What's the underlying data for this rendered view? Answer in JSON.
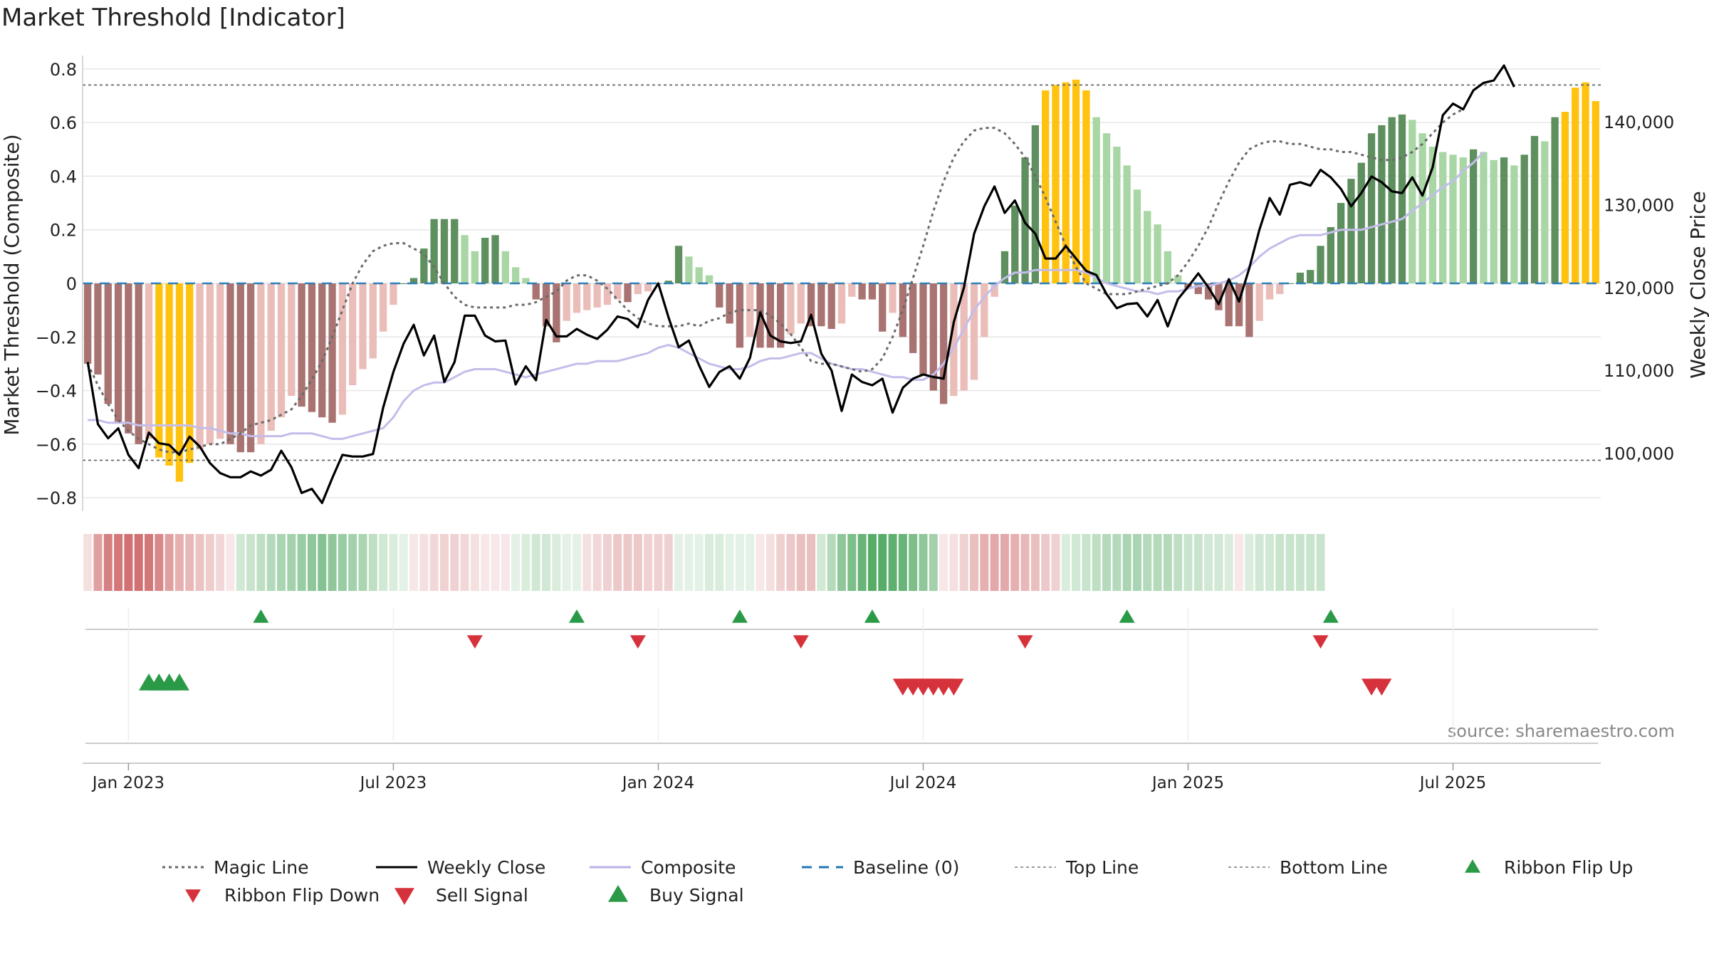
{
  "chart_data": {
    "type": "bar",
    "title": "Market Threshold [Indicator]",
    "ylabel": "Market Threshold (Composite)",
    "y2label": "Weekly Close Price",
    "source": "source: sharemaestro.com",
    "ylim": [
      -0.85,
      0.85
    ],
    "y2lim": [
      93000,
      148000
    ],
    "yticks": [
      {
        "v": 0.8,
        "label": "0.8"
      },
      {
        "v": 0.6,
        "label": "0.6"
      },
      {
        "v": 0.4,
        "label": "0.4"
      },
      {
        "v": 0.2,
        "label": "0.2"
      },
      {
        "v": 0,
        "label": "0"
      },
      {
        "v": -0.2,
        "label": "−0.2"
      },
      {
        "v": -0.4,
        "label": "−0.4"
      },
      {
        "v": -0.6,
        "label": "−0.6"
      },
      {
        "v": -0.8,
        "label": "−0.8"
      }
    ],
    "y2ticks": [
      {
        "v": 100000,
        "label": "100,000"
      },
      {
        "v": 110000,
        "label": "110,000"
      },
      {
        "v": 120000,
        "label": "120,000"
      },
      {
        "v": 130000,
        "label": "130,000"
      },
      {
        "v": 140000,
        "label": "140,000"
      }
    ],
    "xticks": [
      {
        "week": 4,
        "label": "Jan 2023"
      },
      {
        "week": 30,
        "label": "Jul 2023"
      },
      {
        "week": 56,
        "label": "Jan 2024"
      },
      {
        "week": 82,
        "label": "Jul 2024"
      },
      {
        "week": 108,
        "label": "Jan 2025"
      },
      {
        "week": 134,
        "label": "Jul 2025"
      }
    ],
    "top_line": 0.74,
    "bottom_line": -0.66,
    "composite_bars": [
      -0.3,
      -0.34,
      -0.45,
      -0.52,
      -0.56,
      -0.6,
      -0.58,
      -0.65,
      -0.68,
      -0.74,
      -0.67,
      -0.62,
      -0.6,
      -0.58,
      -0.6,
      -0.63,
      -0.63,
      -0.6,
      -0.55,
      -0.5,
      -0.42,
      -0.46,
      -0.48,
      -0.5,
      -0.52,
      -0.49,
      -0.38,
      -0.32,
      -0.28,
      -0.18,
      -0.08,
      0,
      0.02,
      0.13,
      0.24,
      0.24,
      0.24,
      0.18,
      0.12,
      0.17,
      0.18,
      0.12,
      0.06,
      0.02,
      -0.06,
      -0.16,
      -0.22,
      -0.14,
      -0.11,
      -0.1,
      -0.09,
      -0.08,
      -0.06,
      -0.07,
      -0.04,
      -0.03,
      0,
      0.01,
      0.14,
      0.1,
      0.06,
      0.03,
      -0.09,
      -0.15,
      -0.24,
      -0.2,
      -0.24,
      -0.24,
      -0.24,
      -0.19,
      -0.15,
      -0.16,
      -0.16,
      -0.17,
      -0.15,
      -0.05,
      -0.06,
      -0.06,
      -0.18,
      -0.11,
      -0.2,
      -0.26,
      -0.34,
      -0.4,
      -0.45,
      -0.42,
      -0.4,
      -0.36,
      -0.2,
      -0.05,
      0.12,
      0.29,
      0.47,
      0.59,
      0.72,
      0.74,
      0.75,
      0.76,
      0.72,
      0.62,
      0.56,
      0.51,
      0.44,
      0.35,
      0.27,
      0.22,
      0.12,
      0.03,
      -0.02,
      -0.04,
      -0.06,
      -0.1,
      -0.16,
      -0.16,
      -0.2,
      -0.14,
      -0.06,
      -0.04,
      0,
      0.04,
      0.05,
      0.14,
      0.21,
      0.3,
      0.39,
      0.45,
      0.56,
      0.59,
      0.62,
      0.63,
      0.61,
      0.56,
      0.51,
      0.49,
      0.48,
      0.47,
      0.5,
      0.49,
      0.46,
      0.47,
      0.44,
      0.48,
      0.55,
      0.53,
      0.62,
      0.64,
      0.73,
      0.75,
      0.68
    ],
    "weekly_close": [
      111000,
      103500,
      101800,
      103000,
      99800,
      98200,
      102500,
      101200,
      101000,
      99800,
      102000,
      100800,
      98800,
      97600,
      97100,
      97100,
      97800,
      97300,
      98000,
      100300,
      98300,
      95200,
      95700,
      94000,
      97000,
      99800,
      99600,
      99600,
      99900,
      105500,
      109800,
      113200,
      115500,
      111800,
      114200,
      108600,
      111000,
      116600,
      116600,
      114200,
      113500,
      113600,
      108300,
      110500,
      108800,
      116100,
      114100,
      114100,
      115000,
      114300,
      113800,
      114900,
      116500,
      116200,
      115200,
      118500,
      120500,
      116400,
      112800,
      113600,
      110600,
      108000,
      109800,
      110500,
      109000,
      111500,
      117000,
      114200,
      113500,
      113300,
      113500,
      116700,
      112000,
      110000,
      105100,
      109500,
      108600,
      108200,
      109000,
      104900,
      107900,
      109000,
      109500,
      109200,
      109000,
      115800,
      120000,
      126500,
      129800,
      132200,
      129000,
      130500,
      127800,
      126500,
      123500,
      123500,
      125000,
      123500,
      122000,
      121500,
      119200,
      117500,
      118000,
      118100,
      116500,
      118500,
      115300,
      118600,
      120100,
      121700,
      120000,
      118000,
      121000,
      118300,
      122300,
      127000,
      130800,
      128800,
      132400,
      132700,
      132300,
      134200,
      133300,
      131900,
      129800,
      131400,
      133400,
      132700,
      131600,
      131400,
      133300,
      131100,
      134500,
      140800,
      142200,
      141500,
      143800,
      144700,
      145000,
      146800,
      144200
    ],
    "composite_line": [
      -0.51,
      -0.51,
      -0.52,
      -0.52,
      -0.52,
      -0.53,
      -0.53,
      -0.53,
      -0.53,
      -0.53,
      -0.53,
      -0.54,
      -0.54,
      -0.55,
      -0.56,
      -0.56,
      -0.57,
      -0.57,
      -0.57,
      -0.57,
      -0.56,
      -0.56,
      -0.56,
      -0.57,
      -0.58,
      -0.58,
      -0.57,
      -0.56,
      -0.55,
      -0.54,
      -0.5,
      -0.44,
      -0.4,
      -0.38,
      -0.37,
      -0.37,
      -0.35,
      -0.33,
      -0.32,
      -0.32,
      -0.32,
      -0.33,
      -0.34,
      -0.35,
      -0.34,
      -0.33,
      -0.32,
      -0.31,
      -0.3,
      -0.3,
      -0.29,
      -0.29,
      -0.29,
      -0.28,
      -0.27,
      -0.26,
      -0.24,
      -0.23,
      -0.24,
      -0.26,
      -0.28,
      -0.3,
      -0.31,
      -0.32,
      -0.32,
      -0.31,
      -0.29,
      -0.28,
      -0.28,
      -0.27,
      -0.26,
      -0.26,
      -0.28,
      -0.3,
      -0.31,
      -0.32,
      -0.32,
      -0.33,
      -0.34,
      -0.35,
      -0.35,
      -0.36,
      -0.36,
      -0.34,
      -0.3,
      -0.24,
      -0.17,
      -0.1,
      -0.05,
      -0.01,
      0.02,
      0.04,
      0.04,
      0.05,
      0.05,
      0.05,
      0.05,
      0.05,
      0.04,
      0.02,
      0,
      -0.01,
      -0.02,
      -0.03,
      -0.03,
      -0.04,
      -0.03,
      -0.03,
      -0.02,
      -0.01,
      -0.01,
      0,
      0.01,
      0.03,
      0.06,
      0.1,
      0.13,
      0.15,
      0.17,
      0.18,
      0.18,
      0.18,
      0.19,
      0.2,
      0.2,
      0.2,
      0.21,
      0.22,
      0.23,
      0.24,
      0.27,
      0.3,
      0.33,
      0.36,
      0.38,
      0.42,
      0.45,
      0.49
    ],
    "magic_line": [
      -0.3,
      -0.38,
      -0.45,
      -0.51,
      -0.55,
      -0.58,
      -0.6,
      -0.62,
      -0.63,
      -0.63,
      -0.62,
      -0.61,
      -0.6,
      -0.6,
      -0.58,
      -0.56,
      -0.53,
      -0.52,
      -0.51,
      -0.49,
      -0.47,
      -0.42,
      -0.36,
      -0.29,
      -0.2,
      -0.1,
      0,
      0.07,
      0.12,
      0.14,
      0.15,
      0.15,
      0.13,
      0.11,
      0.06,
      0,
      -0.05,
      -0.08,
      -0.09,
      -0.09,
      -0.09,
      -0.09,
      -0.08,
      -0.08,
      -0.07,
      -0.05,
      -0.03,
      0.01,
      0.03,
      0.03,
      0.01,
      -0.02,
      -0.06,
      -0.1,
      -0.13,
      -0.15,
      -0.16,
      -0.16,
      -0.16,
      -0.15,
      -0.16,
      -0.14,
      -0.13,
      -0.11,
      -0.1,
      -0.1,
      -0.1,
      -0.12,
      -0.15,
      -0.19,
      -0.24,
      -0.29,
      -0.3,
      -0.3,
      -0.31,
      -0.32,
      -0.33,
      -0.32,
      -0.28,
      -0.2,
      -0.1,
      0.02,
      0.14,
      0.27,
      0.38,
      0.47,
      0.53,
      0.57,
      0.58,
      0.58,
      0.56,
      0.52,
      0.47,
      0.4,
      0.32,
      0.23,
      0.14,
      0.06,
      0,
      -0.02,
      -0.04,
      -0.04,
      -0.04,
      -0.03,
      -0.02,
      -0.01,
      0,
      0.03,
      0.08,
      0.14,
      0.21,
      0.3,
      0.38,
      0.45,
      0.5,
      0.52,
      0.53,
      0.53,
      0.52,
      0.52,
      0.51,
      0.5,
      0.5,
      0.49,
      0.49,
      0.48,
      0.47,
      0.46,
      0.46,
      0.47,
      0.49,
      0.52,
      0.56,
      0.6,
      0.63,
      0.65
    ],
    "ribbon": [
      -0.2,
      -0.6,
      -0.8,
      -0.85,
      -0.9,
      -0.9,
      -0.85,
      -0.75,
      -0.6,
      -0.5,
      -0.45,
      -0.38,
      -0.32,
      -0.25,
      -0.15,
      0.25,
      0.3,
      0.35,
      0.4,
      0.45,
      0.5,
      0.55,
      0.6,
      0.65,
      0.6,
      0.55,
      0.5,
      0.45,
      0.35,
      0.25,
      0.2,
      0.15,
      -0.15,
      -0.2,
      -0.25,
      -0.28,
      -0.3,
      -0.25,
      -0.2,
      -0.15,
      -0.1,
      -0.1,
      0.15,
      0.2,
      0.25,
      0.25,
      0.2,
      0.15,
      0.1,
      -0.2,
      -0.25,
      -0.3,
      -0.35,
      -0.35,
      -0.35,
      -0.3,
      -0.3,
      -0.3,
      0.1,
      0.15,
      0.15,
      0.2,
      0.2,
      0.15,
      0.1,
      0.1,
      -0.1,
      -0.2,
      -0.3,
      -0.35,
      -0.4,
      -0.4,
      0.25,
      0.4,
      0.6,
      0.7,
      0.8,
      0.9,
      0.9,
      0.85,
      0.8,
      0.7,
      0.6,
      0.5,
      -0.1,
      -0.2,
      -0.3,
      -0.4,
      -0.5,
      -0.55,
      -0.55,
      -0.5,
      -0.45,
      -0.4,
      -0.35,
      -0.3,
      0.2,
      0.25,
      0.3,
      0.35,
      0.4,
      0.4,
      0.45,
      0.45,
      0.4,
      0.4,
      0.4,
      0.35,
      0.3,
      0.3,
      0.25,
      0.25,
      0.2,
      -0.1,
      0.2,
      0.25,
      0.25,
      0.3,
      0.3,
      0.3,
      0.3,
      0.3
    ],
    "ribbon_start_week": 0,
    "ribbon_flip_up": [
      17,
      48,
      64,
      77,
      102,
      122
    ],
    "ribbon_flip_down": [
      38,
      54,
      70,
      92,
      121
    ],
    "buy_signal": [
      6,
      7,
      8,
      9
    ],
    "sell_signal": [
      80,
      81,
      82,
      83,
      84,
      85,
      126,
      127
    ],
    "legend": [
      {
        "name": "Magic Line",
        "style": "dotted",
        "color": "#666666"
      },
      {
        "name": "Weekly Close",
        "style": "solid",
        "color": "#000000"
      },
      {
        "name": "Composite",
        "style": "solid",
        "color": "#b8b2e6"
      },
      {
        "name": "Baseline (0)",
        "style": "dashed",
        "color": "#1f77b4"
      },
      {
        "name": "Top Line",
        "style": "dotted-light",
        "color": "#999999"
      },
      {
        "name": "Bottom Line",
        "style": "dotted-light",
        "color": "#999999"
      },
      {
        "name": "Ribbon Flip Up",
        "style": "triangle-up",
        "color": "#2a9a47"
      },
      {
        "name": "Ribbon Flip Down",
        "style": "triangle-down",
        "color": "#d6323c"
      },
      {
        "name": "Sell Signal",
        "style": "triangle-down-large",
        "color": "#d6323c"
      },
      {
        "name": "Buy Signal",
        "style": "triangle-up-large",
        "color": "#2a9a47"
      }
    ],
    "legend_placement": "bottom",
    "colors": {
      "dark_green": "#5e8f5e",
      "light_green": "#a8d6a4",
      "dark_red": "#a87371",
      "light_red": "#eabdb9",
      "gold": "#ffc20e",
      "ribbon_green": "#3a9d4d",
      "ribbon_red": "#c9585a",
      "grid": "#e6e6e6"
    }
  }
}
